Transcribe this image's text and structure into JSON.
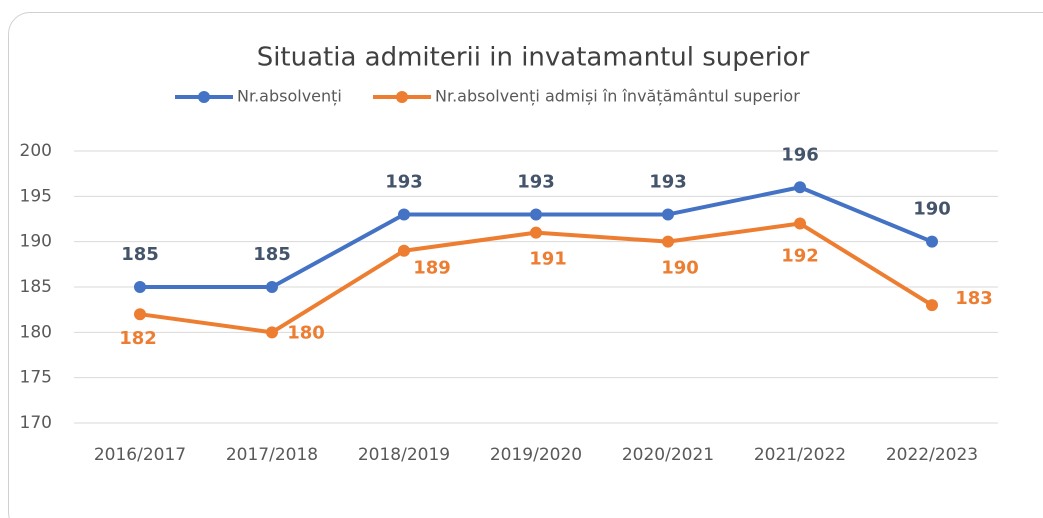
{
  "chart_data": {
    "type": "line",
    "title": "Situatia admiterii in invatamantul superior",
    "categories": [
      "2016/2017",
      "2017/2018",
      "2018/2019",
      "2019/2020",
      "2020/2021",
      "2021/2022",
      "2022/2023"
    ],
    "series": [
      {
        "name": "Nr.absolvenți",
        "color": "#4472c4",
        "values": [
          185,
          185,
          193,
          193,
          193,
          196,
          190
        ]
      },
      {
        "name": "Nr.absolvenți admiși în învățământul superior",
        "color": "#ed7d31",
        "values": [
          182,
          180,
          189,
          191,
          190,
          192,
          183
        ]
      }
    ],
    "ylim": [
      170,
      200
    ],
    "yticks": [
      170,
      175,
      180,
      185,
      190,
      195,
      200
    ],
    "grid": true,
    "legend": "top"
  }
}
